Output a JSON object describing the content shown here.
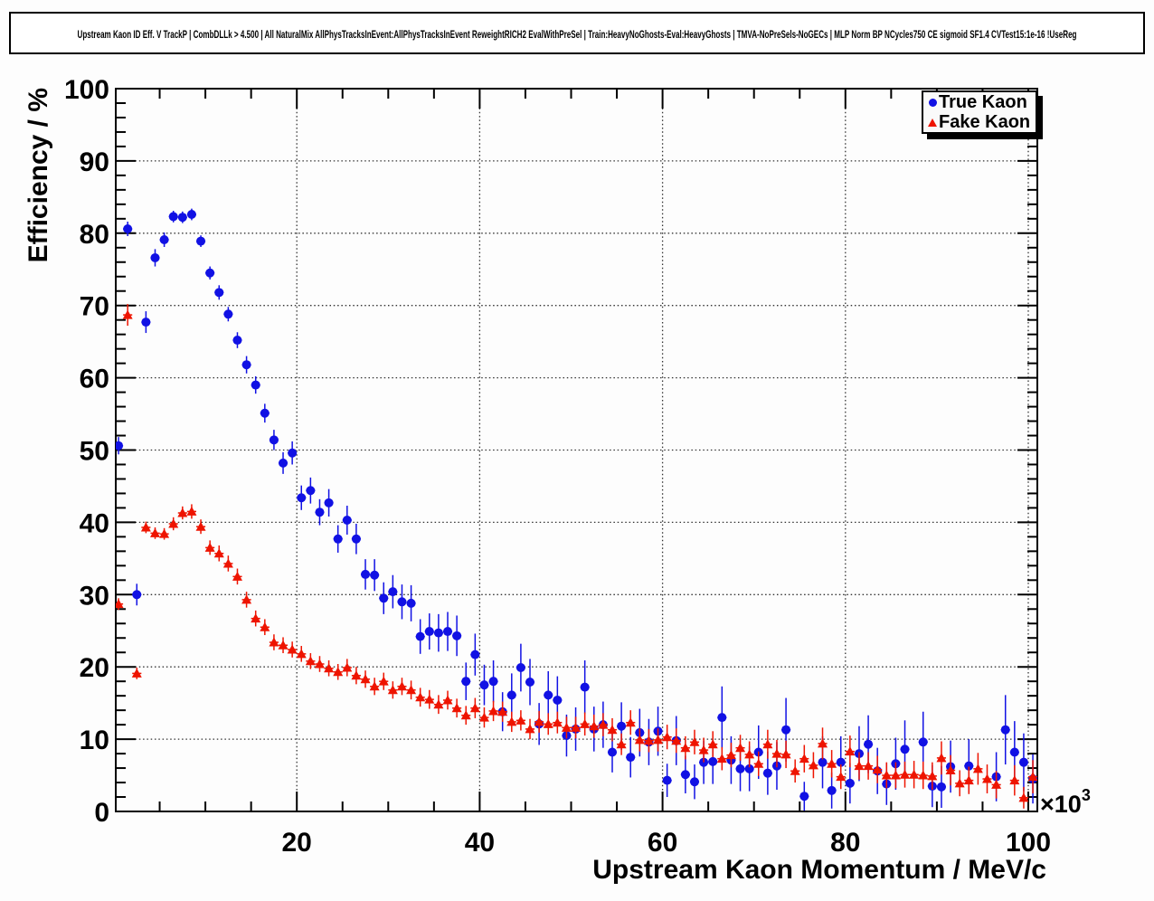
{
  "title": "Upstream Kaon ID Eff. V TrackP | CombDLLk > 4.500 | All NaturalMix AllPhysTracksInEvent:AllPhysTracksInEvent ReweightRICH2 EvalWithPreSel | Train:HeavyNoGhosts-Eval:HeavyGhosts | TMVA-NoPreSels-NoGECs | MLP Norm BP NCycles750 CE sigmoid SF1.4 CVTest15:1e-16 !UseReg",
  "chart_data": {
    "type": "scatter",
    "title": "Upstream Kaon ID Eff. V TrackP | CombDLLk > 4.500 | All NaturalMix AllPhysTracksInEvent:AllPhysTracksInEvent ReweightRICH2 EvalWithPreSel | Train:HeavyNoGhosts-Eval:HeavyGhosts | TMVA-NoPreSels-NoGECs | MLP Norm BP NCycles750 CE sigmoid SF1.4 CVTest15:1e-16 !UseReg",
    "xlabel": "Upstream Kaon Momentum / MeV/c",
    "ylabel": "Efficiency / %",
    "x_axis": {
      "lim": [
        0,
        101
      ],
      "major_ticks": [
        20,
        40,
        60,
        80,
        100
      ],
      "minor_step": 5,
      "multiplier_prefix": "×10",
      "multiplier_exponent": "3"
    },
    "y_axis": {
      "lim": [
        0,
        100
      ],
      "major_ticks": [
        0,
        10,
        20,
        30,
        40,
        50,
        60,
        70,
        80,
        90,
        100
      ],
      "minor_step": 2
    },
    "grid": "dotted",
    "legend_position": "top-right",
    "bin_half_width": 0.5,
    "x_unit_scale": "1e3 MeV/c",
    "series": [
      {
        "name": "True Kaon",
        "marker": "circle",
        "color": "#1111e4",
        "points": [
          [
            0.5,
            50.6,
            1.2
          ],
          [
            1.5,
            80.6,
            1.0
          ],
          [
            2.5,
            30.0,
            1.5
          ],
          [
            3.5,
            67.7,
            1.5
          ],
          [
            4.5,
            76.6,
            1.2
          ],
          [
            5.5,
            79.1,
            1.0
          ],
          [
            6.5,
            82.3,
            0.8
          ],
          [
            7.5,
            82.2,
            0.8
          ],
          [
            8.5,
            82.6,
            0.8
          ],
          [
            9.5,
            78.9,
            0.8
          ],
          [
            10.5,
            74.5,
            0.9
          ],
          [
            11.5,
            71.8,
            1.0
          ],
          [
            12.5,
            68.8,
            1.0
          ],
          [
            13.5,
            65.2,
            1.1
          ],
          [
            14.5,
            61.8,
            1.2
          ],
          [
            15.5,
            59.0,
            1.2
          ],
          [
            16.5,
            55.1,
            1.3
          ],
          [
            17.5,
            51.4,
            1.4
          ],
          [
            18.5,
            48.2,
            1.5
          ],
          [
            19.5,
            49.6,
            1.6
          ],
          [
            20.5,
            43.4,
            1.7
          ],
          [
            21.5,
            44.4,
            1.8
          ],
          [
            22.5,
            41.4,
            1.8
          ],
          [
            23.5,
            42.7,
            1.9
          ],
          [
            24.5,
            37.7,
            1.9
          ],
          [
            25.5,
            40.3,
            2.0
          ],
          [
            26.5,
            37.7,
            2.1
          ],
          [
            27.5,
            32.8,
            2.1
          ],
          [
            28.5,
            32.7,
            2.2
          ],
          [
            29.5,
            29.5,
            2.2
          ],
          [
            30.5,
            30.4,
            2.3
          ],
          [
            31.5,
            29.0,
            2.4
          ],
          [
            32.5,
            28.8,
            2.5
          ],
          [
            33.5,
            24.2,
            2.4
          ],
          [
            34.5,
            24.9,
            2.5
          ],
          [
            35.5,
            24.7,
            2.6
          ],
          [
            36.5,
            24.9,
            2.7
          ],
          [
            37.5,
            24.3,
            2.8
          ],
          [
            38.5,
            18.0,
            2.6
          ],
          [
            39.5,
            21.7,
            2.9
          ],
          [
            40.5,
            17.5,
            2.8
          ],
          [
            41.5,
            18.0,
            2.9
          ],
          [
            42.5,
            13.8,
            2.7
          ],
          [
            43.5,
            16.1,
            3.0
          ],
          [
            44.5,
            19.9,
            3.3
          ],
          [
            45.5,
            17.9,
            3.2
          ],
          [
            46.5,
            12.1,
            2.9
          ],
          [
            47.5,
            16.1,
            3.3
          ],
          [
            48.5,
            15.4,
            3.3
          ],
          [
            49.5,
            10.5,
            2.9
          ],
          [
            50.5,
            11.4,
            3.0
          ],
          [
            51.5,
            17.2,
            3.7
          ],
          [
            52.5,
            11.4,
            3.1
          ],
          [
            53.5,
            12.0,
            3.2
          ],
          [
            54.5,
            8.2,
            2.8
          ],
          [
            55.5,
            11.8,
            3.3
          ],
          [
            56.5,
            7.5,
            2.8
          ],
          [
            57.5,
            10.9,
            3.3
          ],
          [
            58.5,
            9.6,
            3.2
          ],
          [
            59.5,
            11.1,
            3.4
          ],
          [
            60.5,
            4.3,
            2.3
          ],
          [
            61.5,
            9.8,
            3.4
          ],
          [
            62.5,
            5.1,
            2.6
          ],
          [
            63.5,
            4.1,
            2.4
          ],
          [
            64.5,
            6.8,
            3.0
          ],
          [
            65.5,
            6.9,
            3.1
          ],
          [
            66.5,
            13.0,
            4.3
          ],
          [
            67.5,
            7.1,
            3.3
          ],
          [
            68.5,
            5.9,
            3.1
          ],
          [
            69.5,
            5.9,
            3.1
          ],
          [
            70.5,
            8.2,
            3.7
          ],
          [
            71.5,
            5.3,
            3.0
          ],
          [
            72.5,
            6.3,
            3.3
          ],
          [
            73.5,
            11.3,
            4.4
          ],
          [
            75.5,
            2.1,
            2.0
          ],
          [
            77.5,
            6.8,
            3.6
          ],
          [
            78.5,
            2.9,
            2.5
          ],
          [
            79.5,
            6.8,
            3.6
          ],
          [
            80.5,
            3.9,
            2.8
          ],
          [
            81.5,
            8.0,
            3.8
          ],
          [
            82.5,
            9.3,
            4.0
          ],
          [
            83.5,
            5.6,
            3.2
          ],
          [
            84.5,
            3.8,
            2.9
          ],
          [
            85.5,
            6.6,
            3.6
          ],
          [
            86.5,
            8.6,
            4.0
          ],
          [
            88.5,
            9.6,
            4.2
          ],
          [
            89.5,
            3.5,
            2.9
          ],
          [
            90.5,
            3.4,
            2.9
          ],
          [
            91.5,
            6.2,
            3.6
          ],
          [
            93.5,
            6.3,
            3.7
          ],
          [
            96.5,
            4.8,
            3.4
          ],
          [
            97.5,
            11.3,
            4.8
          ],
          [
            98.5,
            8.2,
            4.3
          ],
          [
            99.5,
            6.8,
            4.0
          ],
          [
            100.5,
            4.5,
            3.4
          ]
        ]
      },
      {
        "name": "Fake Kaon",
        "marker": "triangle",
        "color": "#ee1400",
        "points": [
          [
            0.5,
            28.7,
            0.8
          ],
          [
            1.5,
            68.7,
            1.5
          ],
          [
            2.5,
            19.1,
            0.8
          ],
          [
            3.5,
            39.3,
            0.8
          ],
          [
            4.5,
            38.5,
            0.8
          ],
          [
            5.5,
            38.4,
            0.8
          ],
          [
            6.5,
            39.8,
            0.9
          ],
          [
            7.5,
            41.3,
            0.9
          ],
          [
            8.5,
            41.5,
            1.0
          ],
          [
            9.5,
            39.4,
            1.0
          ],
          [
            10.5,
            36.5,
            1.0
          ],
          [
            11.5,
            35.7,
            1.1
          ],
          [
            12.5,
            34.3,
            1.1
          ],
          [
            13.5,
            32.5,
            1.1
          ],
          [
            14.5,
            29.3,
            1.1
          ],
          [
            15.5,
            26.7,
            1.1
          ],
          [
            16.5,
            25.5,
            1.1
          ],
          [
            17.5,
            23.4,
            1.1
          ],
          [
            18.5,
            23.0,
            1.1
          ],
          [
            19.5,
            22.4,
            1.1
          ],
          [
            20.5,
            21.8,
            1.1
          ],
          [
            21.5,
            20.8,
            1.1
          ],
          [
            22.5,
            20.4,
            1.1
          ],
          [
            23.5,
            19.8,
            1.1
          ],
          [
            24.5,
            19.3,
            1.1
          ],
          [
            25.5,
            19.9,
            1.2
          ],
          [
            26.5,
            18.8,
            1.2
          ],
          [
            27.5,
            18.3,
            1.2
          ],
          [
            28.5,
            17.3,
            1.2
          ],
          [
            29.5,
            18.0,
            1.2
          ],
          [
            30.5,
            16.8,
            1.2
          ],
          [
            31.5,
            17.3,
            1.2
          ],
          [
            32.5,
            16.8,
            1.3
          ],
          [
            33.5,
            15.8,
            1.3
          ],
          [
            34.5,
            15.5,
            1.3
          ],
          [
            35.5,
            14.8,
            1.3
          ],
          [
            36.5,
            15.4,
            1.3
          ],
          [
            37.5,
            14.3,
            1.3
          ],
          [
            38.5,
            13.3,
            1.3
          ],
          [
            39.5,
            14.3,
            1.4
          ],
          [
            40.5,
            13.0,
            1.4
          ],
          [
            41.5,
            13.9,
            1.4
          ],
          [
            42.5,
            13.8,
            1.4
          ],
          [
            43.5,
            12.4,
            1.4
          ],
          [
            44.5,
            12.6,
            1.4
          ],
          [
            45.5,
            11.4,
            1.4
          ],
          [
            46.5,
            12.4,
            1.5
          ],
          [
            47.5,
            12.1,
            1.5
          ],
          [
            48.5,
            12.3,
            1.5
          ],
          [
            49.5,
            11.6,
            1.5
          ],
          [
            50.5,
            11.6,
            1.5
          ],
          [
            51.5,
            12.1,
            1.6
          ],
          [
            52.5,
            11.8,
            1.6
          ],
          [
            53.5,
            12.0,
            1.6
          ],
          [
            54.5,
            11.3,
            1.6
          ],
          [
            55.5,
            9.3,
            1.5
          ],
          [
            56.5,
            12.3,
            1.7
          ],
          [
            57.5,
            9.9,
            1.6
          ],
          [
            58.5,
            9.8,
            1.6
          ],
          [
            59.5,
            9.9,
            1.6
          ],
          [
            60.5,
            10.3,
            1.7
          ],
          [
            61.5,
            9.8,
            1.7
          ],
          [
            62.5,
            8.8,
            1.6
          ],
          [
            63.5,
            9.6,
            1.7
          ],
          [
            64.5,
            8.5,
            1.7
          ],
          [
            65.5,
            9.3,
            1.8
          ],
          [
            66.5,
            7.3,
            1.6
          ],
          [
            67.5,
            7.8,
            1.7
          ],
          [
            68.5,
            8.8,
            1.8
          ],
          [
            69.5,
            7.9,
            1.8
          ],
          [
            70.5,
            6.6,
            1.7
          ],
          [
            71.5,
            9.3,
            2.0
          ],
          [
            72.5,
            8.0,
            1.9
          ],
          [
            73.5,
            7.9,
            1.9
          ],
          [
            74.5,
            5.6,
            1.6
          ],
          [
            75.5,
            7.3,
            1.9
          ],
          [
            76.5,
            6.4,
            1.8
          ],
          [
            77.5,
            9.4,
            2.2
          ],
          [
            78.5,
            6.6,
            1.9
          ],
          [
            79.5,
            4.8,
            1.7
          ],
          [
            80.5,
            8.3,
            2.2
          ],
          [
            81.5,
            6.3,
            1.9
          ],
          [
            82.5,
            6.3,
            1.9
          ],
          [
            83.5,
            5.8,
            1.9
          ],
          [
            84.5,
            5.0,
            1.8
          ],
          [
            85.5,
            5.0,
            1.8
          ],
          [
            86.5,
            5.1,
            1.8
          ],
          [
            87.5,
            5.1,
            1.9
          ],
          [
            88.5,
            5.0,
            1.9
          ],
          [
            89.5,
            4.9,
            1.9
          ],
          [
            90.5,
            7.4,
            2.3
          ],
          [
            91.5,
            5.7,
            2.1
          ],
          [
            92.5,
            3.9,
            1.8
          ],
          [
            93.5,
            4.3,
            1.9
          ],
          [
            94.5,
            5.9,
            2.2
          ],
          [
            95.5,
            4.5,
            2.0
          ],
          [
            96.5,
            3.7,
            1.9
          ],
          [
            98.5,
            4.3,
            2.1
          ],
          [
            99.5,
            1.9,
            1.5
          ],
          [
            100.5,
            4.8,
            2.3
          ]
        ]
      }
    ]
  }
}
